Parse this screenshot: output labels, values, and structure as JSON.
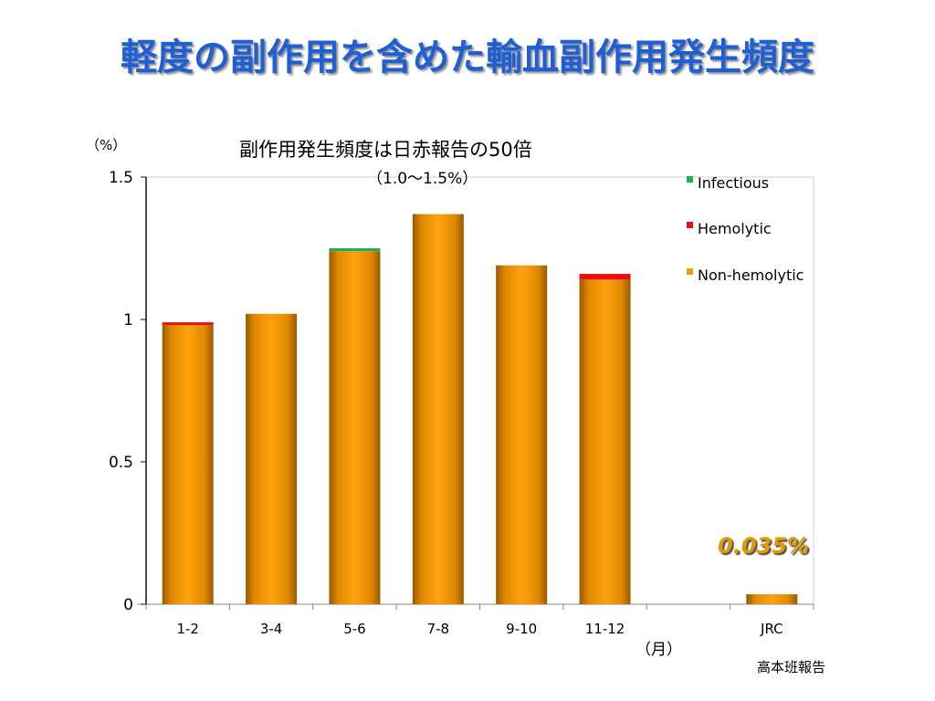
{
  "slide": {
    "title": "軽度の副作用を含めた輸血副作用発生頻度",
    "source_note": "高本班報告"
  },
  "colors": {
    "title": "#1f5fd6",
    "non_hemolytic": "#f59a0a",
    "hemolytic": "#e80e0e",
    "infectious": "#1fae5a",
    "annotation": "#e39a00"
  },
  "chart_data": {
    "type": "bar",
    "stacked": true,
    "title": "副作用発生頻度は日赤報告の50倍",
    "subtitle": "（1.0～1.5%）",
    "ylabel": "（%）",
    "xlabel": "（月）",
    "ylim": [
      0,
      1.5
    ],
    "yticks": [
      "0",
      "0.5",
      "1",
      "1.5"
    ],
    "ytick_values": [
      0,
      0.5,
      1,
      1.5
    ],
    "categories": [
      "1-2",
      "3-4",
      "5-6",
      "7-8",
      "9-10",
      "11-12",
      "",
      "JRC"
    ],
    "series": [
      {
        "name": "Non-hemolytic",
        "color": "#f59a0a",
        "values": [
          0.98,
          1.02,
          1.24,
          1.37,
          1.19,
          1.14,
          0,
          0.035
        ]
      },
      {
        "name": "Hemolytic",
        "color": "#e80e0e",
        "values": [
          0.01,
          0,
          0,
          0,
          0,
          0.02,
          0,
          0
        ]
      },
      {
        "name": "Infectious",
        "color": "#1fae5a",
        "values": [
          0,
          0,
          0.01,
          0,
          0,
          0,
          0,
          0
        ]
      }
    ],
    "legend_order": [
      "Infectious",
      "Hemolytic",
      "Non-hemolytic"
    ],
    "legend_position": "top-right",
    "annotation": "0.035%",
    "grid": false
  }
}
